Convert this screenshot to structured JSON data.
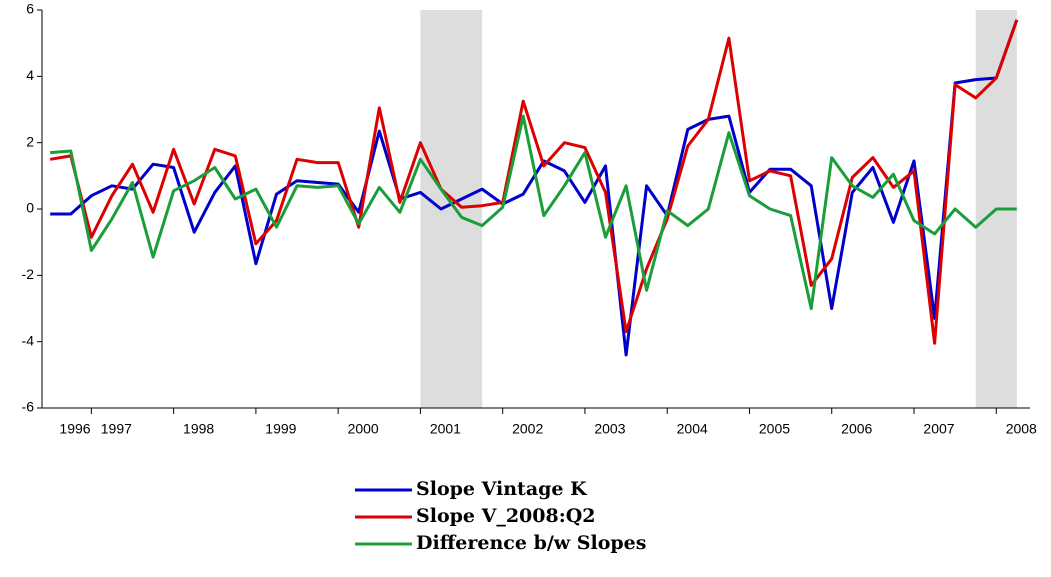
{
  "chart_data": {
    "type": "line",
    "x": [
      1996.5,
      1996.75,
      1997,
      1997.25,
      1997.5,
      1997.75,
      1998,
      1998.25,
      1998.5,
      1998.75,
      1999,
      1999.25,
      1999.5,
      1999.75,
      2000,
      2000.25,
      2000.5,
      2000.75,
      2001,
      2001.25,
      2001.5,
      2001.75,
      2002,
      2002.25,
      2002.5,
      2002.75,
      2003,
      2003.25,
      2003.5,
      2003.75,
      2004,
      2004.25,
      2004.5,
      2004.75,
      2005,
      2005.25,
      2005.5,
      2005.75,
      2006,
      2006.25,
      2006.5,
      2006.75,
      2007,
      2007.25,
      2007.5,
      2007.75,
      2008,
      2008.25
    ],
    "series": [
      {
        "name": "Slope Vintage K",
        "color": "#0000cc",
        "values": [
          -0.15,
          -0.15,
          0.4,
          0.7,
          0.6,
          1.35,
          1.25,
          -0.7,
          0.5,
          1.3,
          -1.65,
          0.45,
          0.85,
          0.8,
          0.75,
          -0.1,
          2.35,
          0.3,
          0.5,
          0.0,
          0.3,
          0.6,
          0.15,
          0.45,
          1.45,
          1.15,
          0.2,
          1.3,
          -4.4,
          0.7,
          -0.2,
          2.4,
          2.7,
          2.8,
          0.5,
          1.2,
          1.2,
          0.7,
          -3.0,
          0.5,
          1.25,
          -0.4,
          1.45,
          -3.3,
          3.8,
          3.9,
          3.95,
          5.7
        ]
      },
      {
        "name": "Slope V_2008:Q2",
        "color": "#dd0000",
        "values": [
          1.5,
          1.6,
          -0.85,
          0.4,
          1.35,
          -0.1,
          1.8,
          0.15,
          1.8,
          1.6,
          -1.05,
          -0.35,
          1.5,
          1.4,
          1.4,
          -0.55,
          3.05,
          0.2,
          2.0,
          0.6,
          0.05,
          0.1,
          0.2,
          3.25,
          1.3,
          2.0,
          1.85,
          0.5,
          -3.7,
          -1.8,
          -0.3,
          1.9,
          2.7,
          5.15,
          0.85,
          1.15,
          1.0,
          -2.3,
          -1.5,
          0.95,
          1.55,
          0.65,
          1.15,
          -4.05,
          3.75,
          3.35,
          3.95,
          5.7
        ]
      },
      {
        "name": "Difference b/w Slopes",
        "color": "#1a9e3a",
        "values": [
          1.7,
          1.75,
          -1.25,
          -0.3,
          0.8,
          -1.45,
          0.55,
          0.85,
          1.25,
          0.3,
          0.6,
          -0.55,
          0.7,
          0.65,
          0.7,
          -0.45,
          0.65,
          -0.1,
          1.5,
          0.6,
          -0.25,
          -0.5,
          0.05,
          2.8,
          -0.2,
          0.7,
          1.7,
          -0.85,
          0.7,
          -2.45,
          -0.05,
          -0.5,
          0.0,
          2.3,
          0.4,
          0.0,
          -0.2,
          -3.0,
          1.55,
          0.7,
          0.35,
          1.05,
          -0.35,
          -0.75,
          0.0,
          -0.55,
          0.0,
          0.0
        ]
      }
    ],
    "shaded": [
      [
        2001,
        2001.75
      ],
      [
        2007.75,
        2008.25
      ]
    ],
    "shade_color": "#dddddd",
    "xlim": [
      1996.4,
      2008.41
    ],
    "xticks": [
      1996,
      1997,
      1998,
      1999,
      2000,
      2001,
      2002,
      2003,
      2004,
      2005,
      2006,
      2007,
      2008
    ],
    "ylim": [
      -6,
      6
    ],
    "yticks": [
      -6,
      -4,
      -2,
      0,
      2,
      4,
      6
    ],
    "legend": "bottom"
  }
}
